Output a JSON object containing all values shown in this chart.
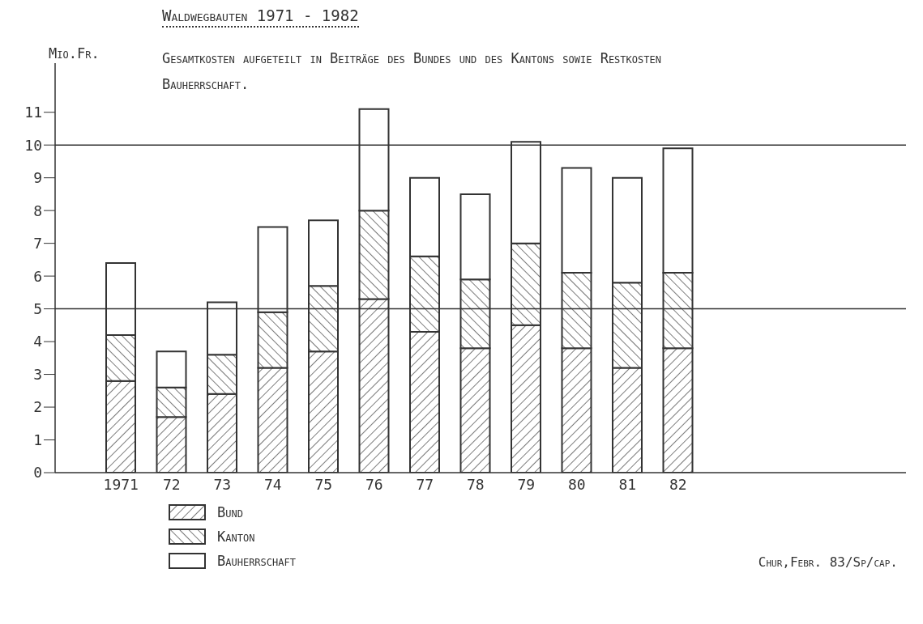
{
  "chart_data": {
    "type": "bar",
    "title": "Waldwegbauten 1971 - 1982",
    "subtitle": "Gesamtkosten aufgeteilt in Beiträge des Bundes und des Kantons sowie Restkosten Bauherrschaft.",
    "ylabel": "Mio.Fr.",
    "categories": [
      "1971",
      "72",
      "73",
      "74",
      "75",
      "76",
      "77",
      "78",
      "79",
      "80",
      "81",
      "82"
    ],
    "stacked": true,
    "series": [
      {
        "name": "Bund",
        "color": "#333333",
        "values": [
          2.8,
          1.7,
          2.4,
          3.2,
          3.7,
          5.3,
          4.3,
          3.8,
          4.5,
          3.8,
          3.2,
          3.8
        ]
      },
      {
        "name": "Kanton",
        "color": "#333333",
        "values": [
          1.4,
          0.9,
          1.2,
          1.7,
          2.0,
          2.7,
          2.3,
          2.1,
          2.5,
          2.3,
          2.6,
          2.3
        ]
      },
      {
        "name": "Bauherrschaft",
        "color": "#ffffff",
        "values": [
          2.2,
          1.1,
          1.6,
          2.6,
          2.0,
          3.1,
          2.4,
          2.6,
          3.1,
          3.2,
          3.2,
          3.8
        ]
      }
    ],
    "ylim": [
      0,
      12.5
    ],
    "yticks": [
      0,
      1,
      2,
      3,
      4,
      5,
      6,
      7,
      8,
      9,
      10,
      11
    ],
    "ref_lines": [
      {
        "axis": "y",
        "value": 5
      },
      {
        "axis": "y",
        "value": 10
      }
    ],
    "legend": "bottom left",
    "annotations": [
      "Chur,Febr. 83/Sp/cap."
    ]
  }
}
